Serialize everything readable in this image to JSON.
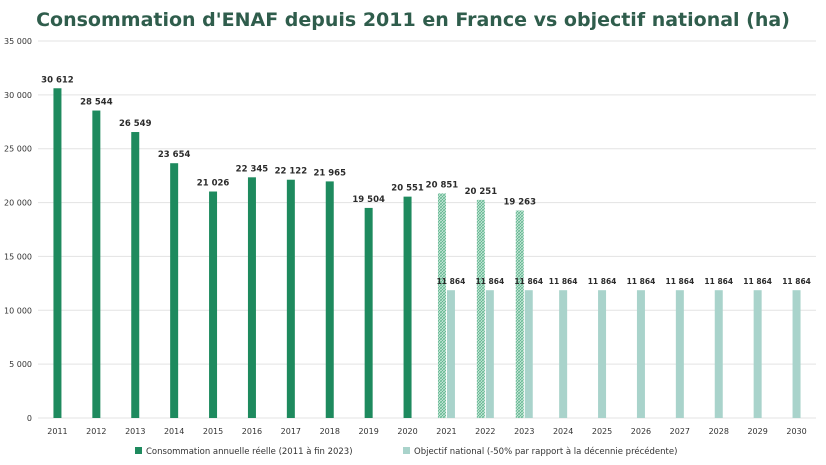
{
  "chart_data": {
    "type": "bar",
    "title": "Consommation d'ENAF depuis 2011 en France vs objectif national (ha)",
    "xlabel": "",
    "ylabel": "",
    "ylim": [
      0,
      35000
    ],
    "y_ticks": [
      "0",
      "5 000",
      "10 000",
      "15 000",
      "20 000",
      "25 000",
      "30 000",
      "35 000"
    ],
    "y_tick_values": [
      0,
      5000,
      10000,
      15000,
      20000,
      25000,
      30000,
      35000
    ],
    "grid": true,
    "legend_position": "bottom",
    "categories": [
      "2011",
      "2012",
      "2013",
      "2014",
      "2015",
      "2016",
      "2017",
      "2018",
      "2019",
      "2020",
      "2021",
      "2022",
      "2023",
      "2024",
      "2025",
      "2026",
      "2027",
      "2028",
      "2029",
      "2030"
    ],
    "series": [
      {
        "name": "Consommation annuelle réelle (2011 à fin 2023)",
        "color": "#1e8a5e",
        "hatched_color": "#8fd0b3",
        "values": [
          30612,
          28544,
          26549,
          23654,
          21026,
          22345,
          22122,
          21965,
          19504,
          20551,
          20851,
          20251,
          19263,
          null,
          null,
          null,
          null,
          null,
          null,
          null
        ],
        "labels": [
          "30 612",
          "28 544",
          "26 549",
          "23 654",
          "21 026",
          "22 345",
          "22 122",
          "21 965",
          "19 504",
          "20 551",
          "20 851",
          "20 251",
          "19 263",
          "",
          "",
          "",
          "",
          "",
          "",
          ""
        ],
        "hatched_from_index": 10
      },
      {
        "name": "Objectif national (-50% par rapport à la décennie précédente)",
        "color": "#a9d3cb",
        "values": [
          null,
          null,
          null,
          null,
          null,
          null,
          null,
          null,
          null,
          null,
          11864,
          11864,
          11864,
          11864,
          11864,
          11864,
          11864,
          11864,
          11864,
          11864
        ],
        "labels": [
          "",
          "",
          "",
          "",
          "",
          "",
          "",
          "",
          "",
          "",
          "11 864",
          "11 864",
          "11 864",
          "11 864",
          "11 864",
          "11 864",
          "11 864",
          "11 864",
          "11 864",
          "11 864"
        ]
      }
    ]
  }
}
